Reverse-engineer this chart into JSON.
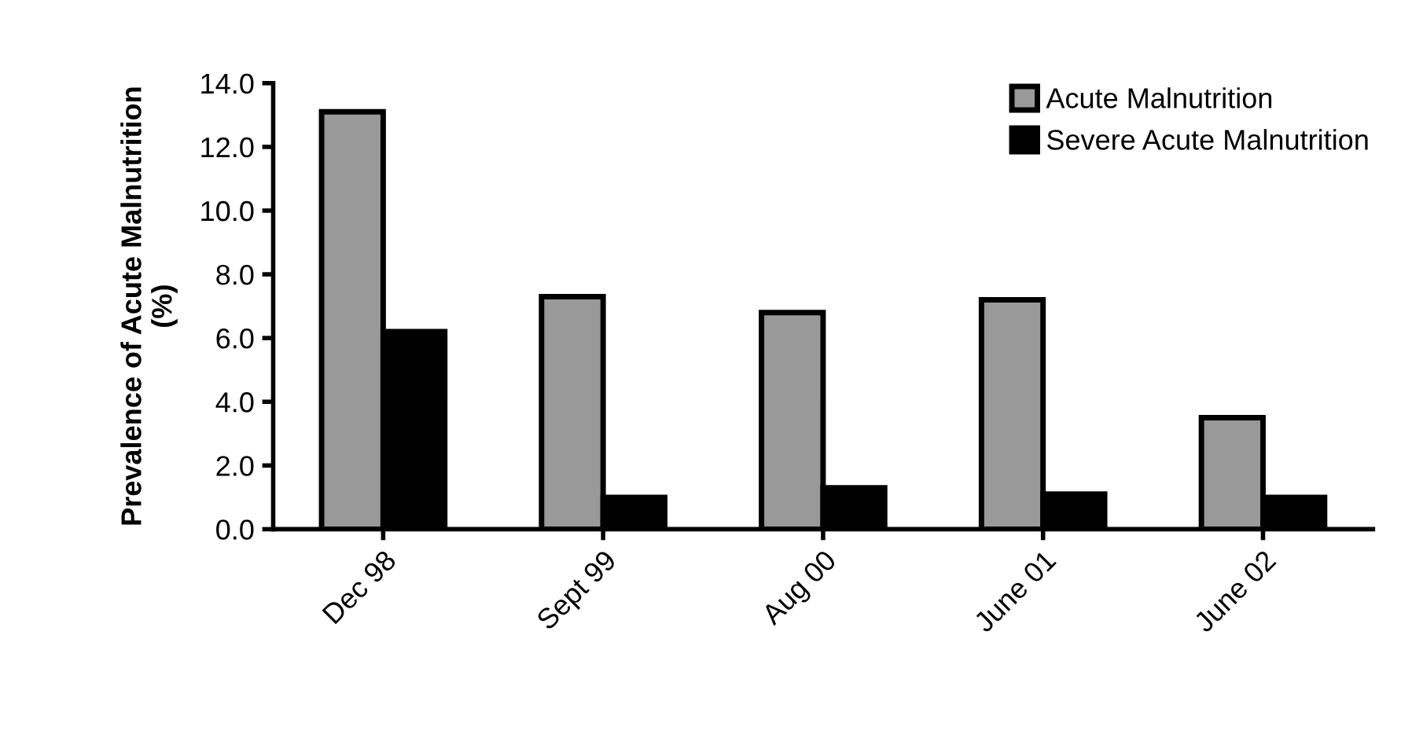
{
  "chart_data": {
    "type": "bar",
    "ylabel": "Prevalence of Acute Malnutrition\n(%)",
    "categories": [
      "Dec 98",
      "Sept 99",
      "Aug 00",
      "June 01",
      "June 02"
    ],
    "series": [
      {
        "name": "Acute Malnutrition",
        "color": "#999999",
        "values": [
          13.1,
          7.3,
          6.8,
          7.2,
          3.5
        ]
      },
      {
        "name": "Severe Acute Malnutrition",
        "color": "#000000",
        "values": [
          6.2,
          1.0,
          1.3,
          1.1,
          1.0
        ]
      }
    ],
    "ylim": [
      0,
      14
    ],
    "yticks": [
      {
        "value": 0,
        "label": "0.0"
      },
      {
        "value": 2,
        "label": "2.0"
      },
      {
        "value": 4,
        "label": "4.0"
      },
      {
        "value": 6,
        "label": "6.0"
      },
      {
        "value": 8,
        "label": "8.0"
      },
      {
        "value": 10,
        "label": "10.0"
      },
      {
        "value": 12,
        "label": "12.0"
      },
      {
        "value": 14,
        "label": "14.0"
      }
    ],
    "grid": false,
    "legend": "top right"
  }
}
